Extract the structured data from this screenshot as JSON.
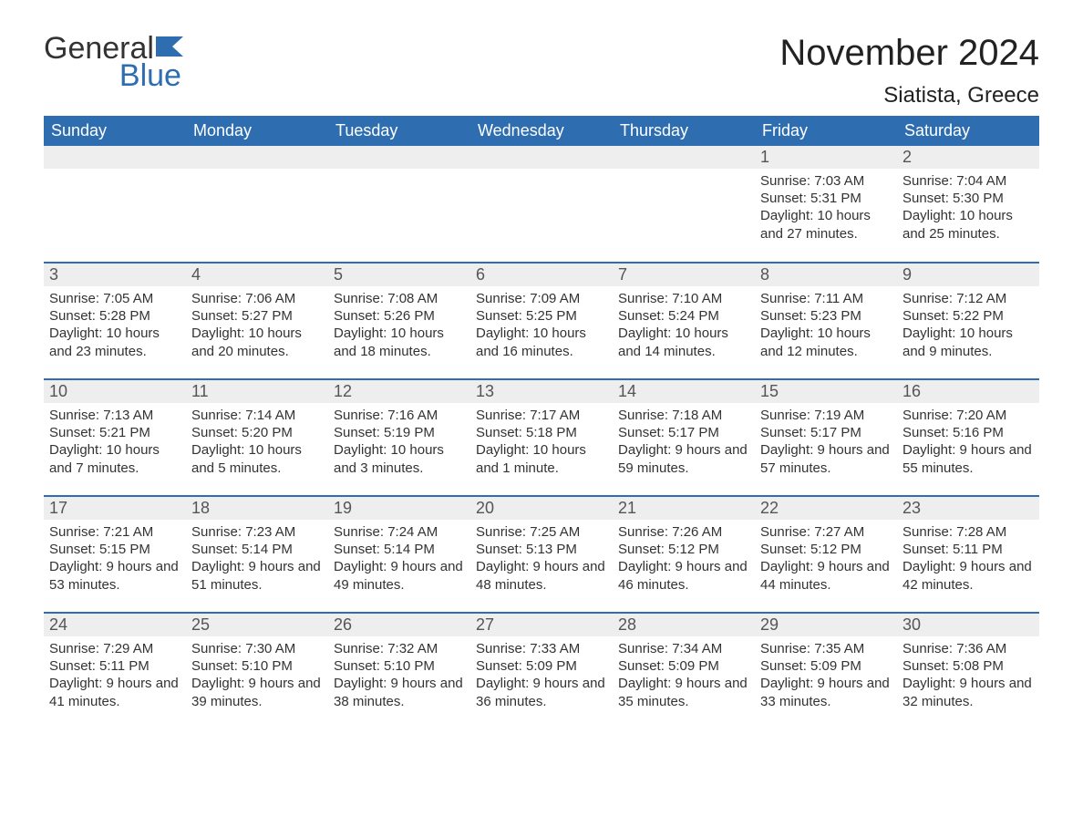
{
  "brand": {
    "general": "General",
    "blue": "Blue",
    "accent_color": "#2e6eb0"
  },
  "title": {
    "month_year": "November 2024",
    "location": "Siatista, Greece"
  },
  "calendar": {
    "type": "table",
    "header_bg": "#2e6eb0",
    "header_text_color": "#ffffff",
    "row_divider_color": "#2e6eb0",
    "daynum_bg": "#eeeeee",
    "background_color": "#ffffff",
    "text_color": "#333333",
    "title_fontsize": 40,
    "location_fontsize": 24,
    "header_fontsize": 18,
    "daynum_fontsize": 18,
    "body_fontsize": 15,
    "columns": [
      "Sunday",
      "Monday",
      "Tuesday",
      "Wednesday",
      "Thursday",
      "Friday",
      "Saturday"
    ],
    "weeks": [
      [
        null,
        null,
        null,
        null,
        null,
        {
          "n": "1",
          "sunrise": "Sunrise: 7:03 AM",
          "sunset": "Sunset: 5:31 PM",
          "daylight": "Daylight: 10 hours and 27 minutes."
        },
        {
          "n": "2",
          "sunrise": "Sunrise: 7:04 AM",
          "sunset": "Sunset: 5:30 PM",
          "daylight": "Daylight: 10 hours and 25 minutes."
        }
      ],
      [
        {
          "n": "3",
          "sunrise": "Sunrise: 7:05 AM",
          "sunset": "Sunset: 5:28 PM",
          "daylight": "Daylight: 10 hours and 23 minutes."
        },
        {
          "n": "4",
          "sunrise": "Sunrise: 7:06 AM",
          "sunset": "Sunset: 5:27 PM",
          "daylight": "Daylight: 10 hours and 20 minutes."
        },
        {
          "n": "5",
          "sunrise": "Sunrise: 7:08 AM",
          "sunset": "Sunset: 5:26 PM",
          "daylight": "Daylight: 10 hours and 18 minutes."
        },
        {
          "n": "6",
          "sunrise": "Sunrise: 7:09 AM",
          "sunset": "Sunset: 5:25 PM",
          "daylight": "Daylight: 10 hours and 16 minutes."
        },
        {
          "n": "7",
          "sunrise": "Sunrise: 7:10 AM",
          "sunset": "Sunset: 5:24 PM",
          "daylight": "Daylight: 10 hours and 14 minutes."
        },
        {
          "n": "8",
          "sunrise": "Sunrise: 7:11 AM",
          "sunset": "Sunset: 5:23 PM",
          "daylight": "Daylight: 10 hours and 12 minutes."
        },
        {
          "n": "9",
          "sunrise": "Sunrise: 7:12 AM",
          "sunset": "Sunset: 5:22 PM",
          "daylight": "Daylight: 10 hours and 9 minutes."
        }
      ],
      [
        {
          "n": "10",
          "sunrise": "Sunrise: 7:13 AM",
          "sunset": "Sunset: 5:21 PM",
          "daylight": "Daylight: 10 hours and 7 minutes."
        },
        {
          "n": "11",
          "sunrise": "Sunrise: 7:14 AM",
          "sunset": "Sunset: 5:20 PM",
          "daylight": "Daylight: 10 hours and 5 minutes."
        },
        {
          "n": "12",
          "sunrise": "Sunrise: 7:16 AM",
          "sunset": "Sunset: 5:19 PM",
          "daylight": "Daylight: 10 hours and 3 minutes."
        },
        {
          "n": "13",
          "sunrise": "Sunrise: 7:17 AM",
          "sunset": "Sunset: 5:18 PM",
          "daylight": "Daylight: 10 hours and 1 minute."
        },
        {
          "n": "14",
          "sunrise": "Sunrise: 7:18 AM",
          "sunset": "Sunset: 5:17 PM",
          "daylight": "Daylight: 9 hours and 59 minutes."
        },
        {
          "n": "15",
          "sunrise": "Sunrise: 7:19 AM",
          "sunset": "Sunset: 5:17 PM",
          "daylight": "Daylight: 9 hours and 57 minutes."
        },
        {
          "n": "16",
          "sunrise": "Sunrise: 7:20 AM",
          "sunset": "Sunset: 5:16 PM",
          "daylight": "Daylight: 9 hours and 55 minutes."
        }
      ],
      [
        {
          "n": "17",
          "sunrise": "Sunrise: 7:21 AM",
          "sunset": "Sunset: 5:15 PM",
          "daylight": "Daylight: 9 hours and 53 minutes."
        },
        {
          "n": "18",
          "sunrise": "Sunrise: 7:23 AM",
          "sunset": "Sunset: 5:14 PM",
          "daylight": "Daylight: 9 hours and 51 minutes."
        },
        {
          "n": "19",
          "sunrise": "Sunrise: 7:24 AM",
          "sunset": "Sunset: 5:14 PM",
          "daylight": "Daylight: 9 hours and 49 minutes."
        },
        {
          "n": "20",
          "sunrise": "Sunrise: 7:25 AM",
          "sunset": "Sunset: 5:13 PM",
          "daylight": "Daylight: 9 hours and 48 minutes."
        },
        {
          "n": "21",
          "sunrise": "Sunrise: 7:26 AM",
          "sunset": "Sunset: 5:12 PM",
          "daylight": "Daylight: 9 hours and 46 minutes."
        },
        {
          "n": "22",
          "sunrise": "Sunrise: 7:27 AM",
          "sunset": "Sunset: 5:12 PM",
          "daylight": "Daylight: 9 hours and 44 minutes."
        },
        {
          "n": "23",
          "sunrise": "Sunrise: 7:28 AM",
          "sunset": "Sunset: 5:11 PM",
          "daylight": "Daylight: 9 hours and 42 minutes."
        }
      ],
      [
        {
          "n": "24",
          "sunrise": "Sunrise: 7:29 AM",
          "sunset": "Sunset: 5:11 PM",
          "daylight": "Daylight: 9 hours and 41 minutes."
        },
        {
          "n": "25",
          "sunrise": "Sunrise: 7:30 AM",
          "sunset": "Sunset: 5:10 PM",
          "daylight": "Daylight: 9 hours and 39 minutes."
        },
        {
          "n": "26",
          "sunrise": "Sunrise: 7:32 AM",
          "sunset": "Sunset: 5:10 PM",
          "daylight": "Daylight: 9 hours and 38 minutes."
        },
        {
          "n": "27",
          "sunrise": "Sunrise: 7:33 AM",
          "sunset": "Sunset: 5:09 PM",
          "daylight": "Daylight: 9 hours and 36 minutes."
        },
        {
          "n": "28",
          "sunrise": "Sunrise: 7:34 AM",
          "sunset": "Sunset: 5:09 PM",
          "daylight": "Daylight: 9 hours and 35 minutes."
        },
        {
          "n": "29",
          "sunrise": "Sunrise: 7:35 AM",
          "sunset": "Sunset: 5:09 PM",
          "daylight": "Daylight: 9 hours and 33 minutes."
        },
        {
          "n": "30",
          "sunrise": "Sunrise: 7:36 AM",
          "sunset": "Sunset: 5:08 PM",
          "daylight": "Daylight: 9 hours and 32 minutes."
        }
      ]
    ]
  }
}
